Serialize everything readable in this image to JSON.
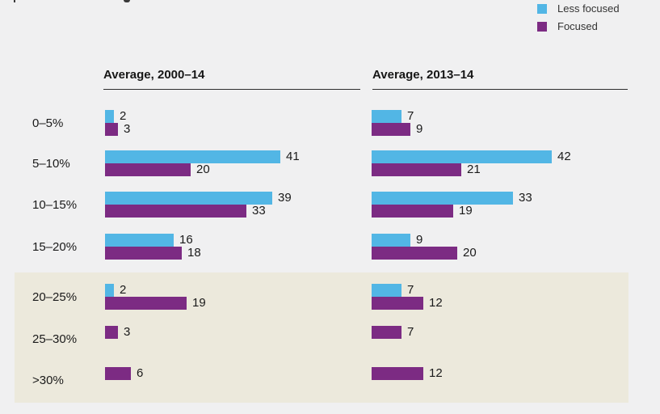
{
  "chart_data": {
    "type": "bar",
    "orientation": "horizontal",
    "title": "",
    "categories": [
      "0–5%",
      "5–10%",
      "10–15%",
      "15–20%",
      "20–25%",
      "25–30%",
      ">30%"
    ],
    "highlighted_categories": [
      "20–25%",
      "25–30%",
      ">30%"
    ],
    "legend_position": "top-right",
    "grid": false,
    "xlim": [
      0,
      45
    ],
    "legend": [
      {
        "label": "Less focused",
        "color": "#52b6e5"
      },
      {
        "label": "Focused",
        "color": "#7c2b83"
      }
    ],
    "panels": [
      {
        "title": "Average, 2000–14",
        "series": [
          {
            "name": "Less focused",
            "color": "#52b6e5",
            "values": [
              2,
              41,
              39,
              16,
              2,
              null,
              null
            ]
          },
          {
            "name": "Focused",
            "color": "#7c2b83",
            "values": [
              3,
              20,
              33,
              18,
              19,
              3,
              6
            ]
          }
        ]
      },
      {
        "title": "Average, 2013–14",
        "series": [
          {
            "name": "Less focused",
            "color": "#52b6e5",
            "values": [
              7,
              42,
              33,
              9,
              7,
              null,
              null
            ]
          },
          {
            "name": "Focused",
            "color": "#7c2b83",
            "values": [
              9,
              21,
              19,
              20,
              12,
              7,
              12
            ]
          }
        ]
      }
    ]
  },
  "colors": {
    "background": "#f0f0f1",
    "highlight_band": "#ece9dc",
    "less_focused": "#52b6e5",
    "focused": "#7c2b83",
    "text": "#1a1a1a"
  }
}
